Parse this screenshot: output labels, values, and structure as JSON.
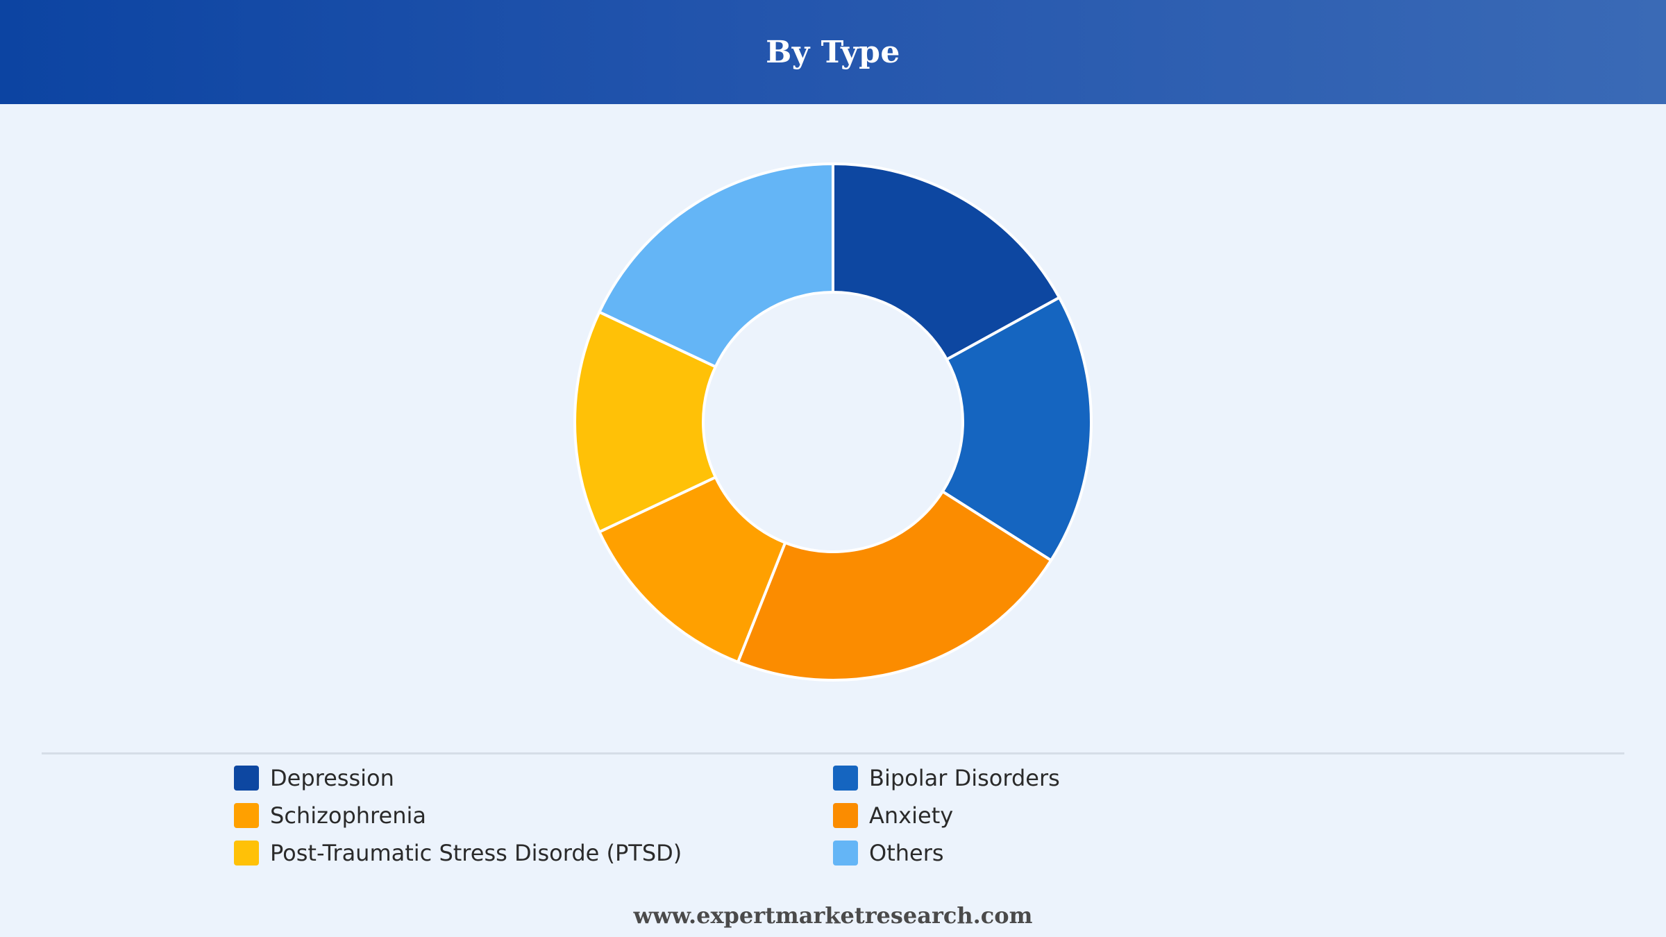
{
  "header": {
    "title": "By Type"
  },
  "footer": {
    "website": "www.expertmarketresearch.com"
  },
  "chart_data": {
    "type": "pie",
    "variant": "donut",
    "title": "By Type",
    "legend_position": "bottom",
    "slice_order": "clockwise-from-top",
    "categories": [
      "Depression",
      "Bipolar Disorders",
      "Anxiety",
      "Schizophrenia",
      "Post-Traumatic Stress Disorde (PTSD)",
      "Others"
    ],
    "values": [
      17,
      17,
      22,
      12,
      14,
      18
    ],
    "colors": [
      "#0d47a1",
      "#1565c0",
      "#fb8c00",
      "#ffa000",
      "#ffc107",
      "#64b5f6"
    ],
    "legend_order": [
      "Depression",
      "Bipolar Disorders",
      "Schizophrenia",
      "Anxiety",
      "Post-Traumatic Stress Disorde (PTSD)",
      "Others"
    ]
  }
}
